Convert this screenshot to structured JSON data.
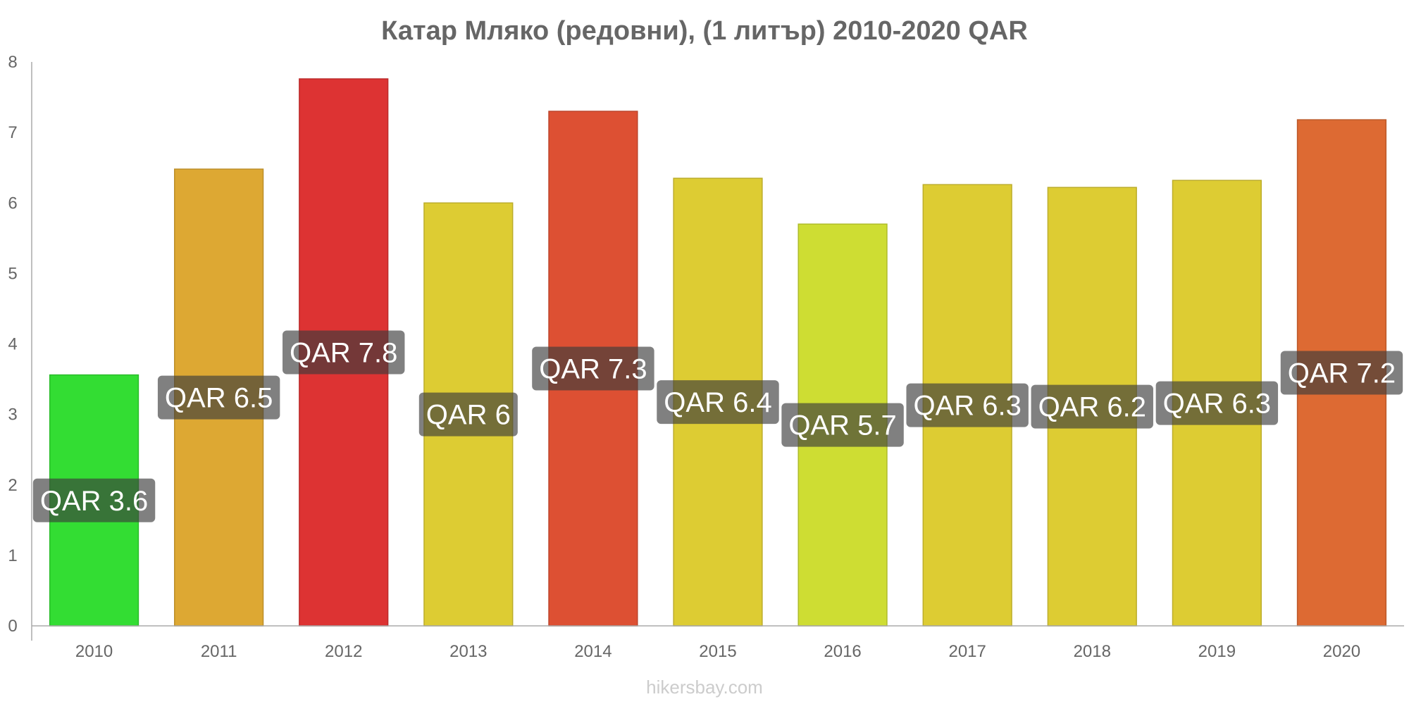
{
  "chart_data": {
    "type": "bar",
    "title": "Катар Мляко (редовни), (1 литър) 2010-2020 QAR",
    "xlabel": "",
    "ylabel": "",
    "ylim": [
      0,
      8
    ],
    "yticks": [
      "0",
      "1",
      "2",
      "3",
      "4",
      "5",
      "6",
      "7",
      "8"
    ],
    "categories": [
      "2010",
      "2011",
      "2012",
      "2013",
      "2014",
      "2015",
      "2016",
      "2017",
      "2018",
      "2019",
      "2020"
    ],
    "values": [
      3.56,
      6.48,
      7.76,
      6.0,
      7.3,
      6.35,
      5.7,
      6.26,
      6.22,
      6.32,
      7.18
    ],
    "labels": [
      "QAR 3.6",
      "QAR 6.5",
      "QAR 7.8",
      "QAR 6",
      "QAR 7.3",
      "QAR 6.4",
      "QAR 5.7",
      "QAR 6.3",
      "QAR 6.2",
      "QAR 6.3",
      "QAR 7.2"
    ],
    "colors": [
      "#33dd33",
      "#dda833",
      "#dd3333",
      "#ddcc33",
      "#dd5033",
      "#ddcc33",
      "#cedd33",
      "#ddcc33",
      "#ddcc33",
      "#ddcc33",
      "#dd6a33"
    ],
    "grid": false,
    "legend": "none"
  },
  "watermark": "hikersbay.com"
}
